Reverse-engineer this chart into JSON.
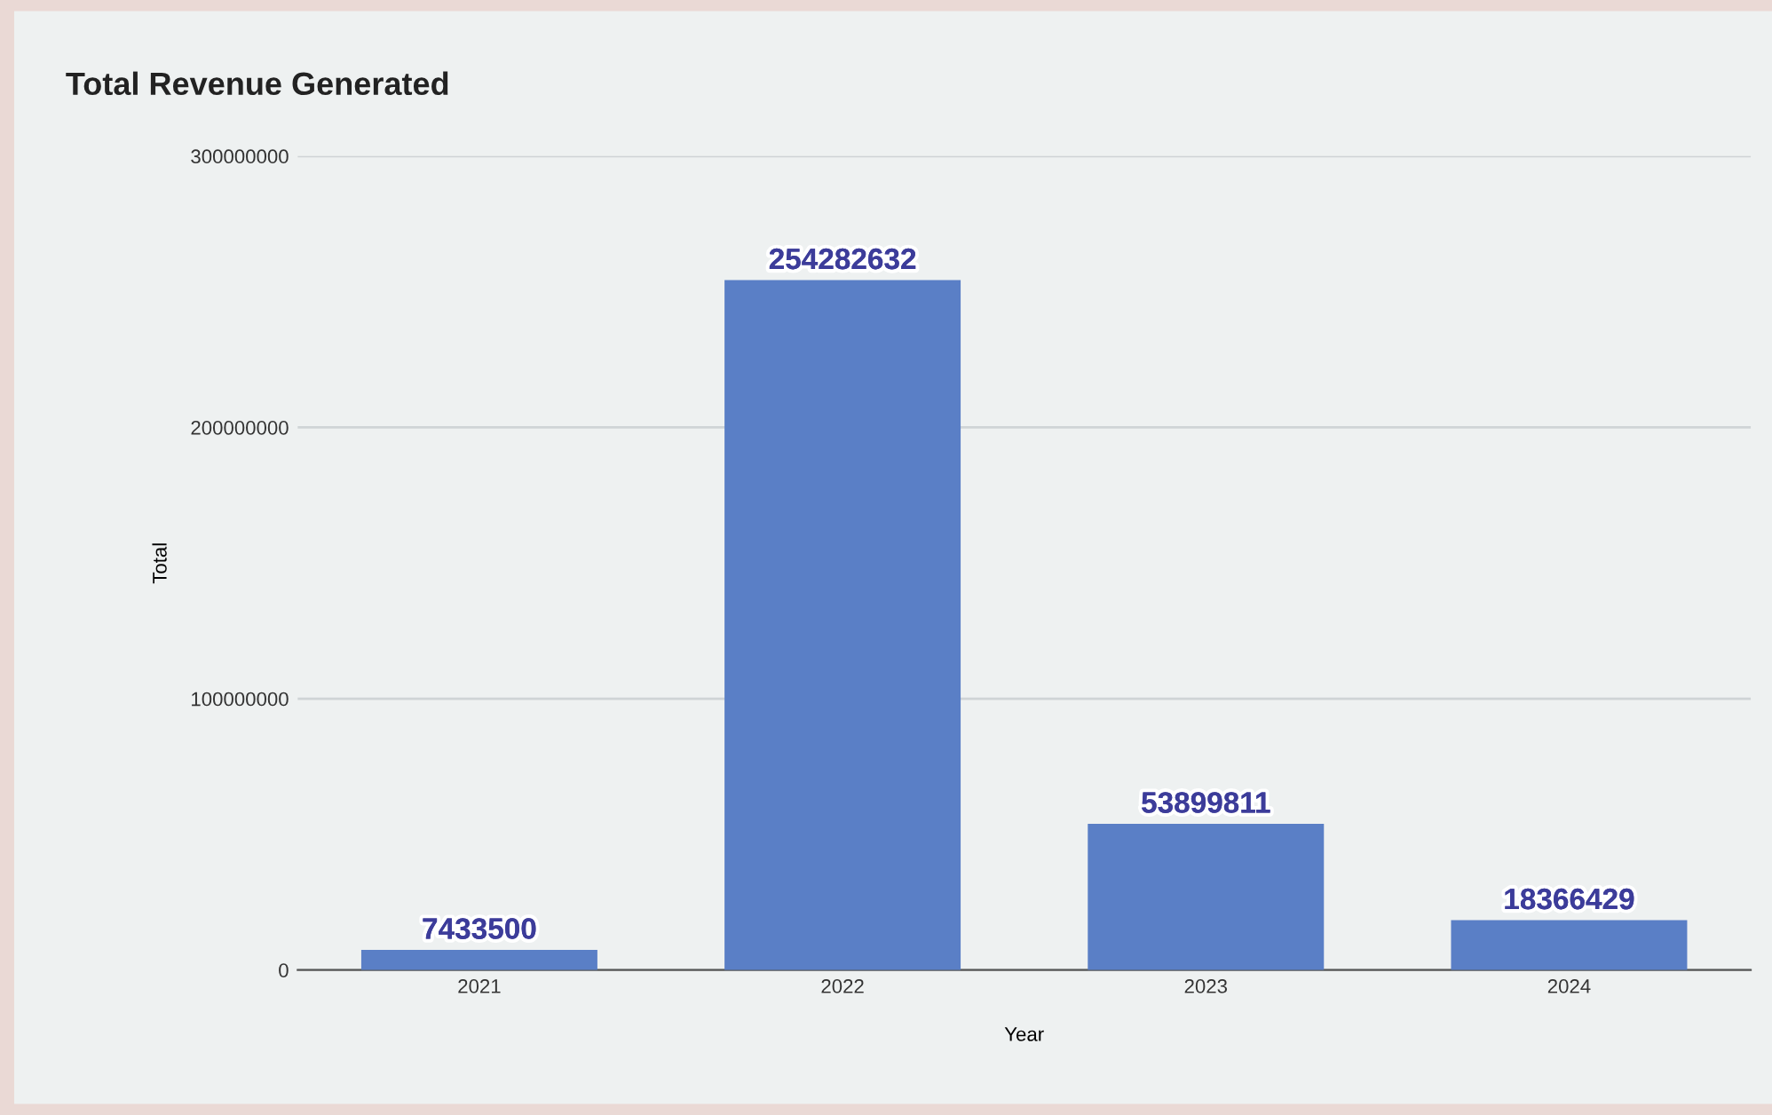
{
  "chart_data": {
    "type": "bar",
    "title": "Total Revenue Generated",
    "xlabel": "Year",
    "ylabel": "Total",
    "categories": [
      "2021",
      "2022",
      "2023",
      "2024"
    ],
    "values": [
      7433500,
      254282632,
      53899811,
      18366429
    ],
    "color": "#5a7fc6",
    "ylim": [
      0,
      300000000
    ],
    "yticks": [
      0,
      100000000,
      200000000,
      300000000
    ],
    "grid": "y",
    "data_labels": true
  }
}
